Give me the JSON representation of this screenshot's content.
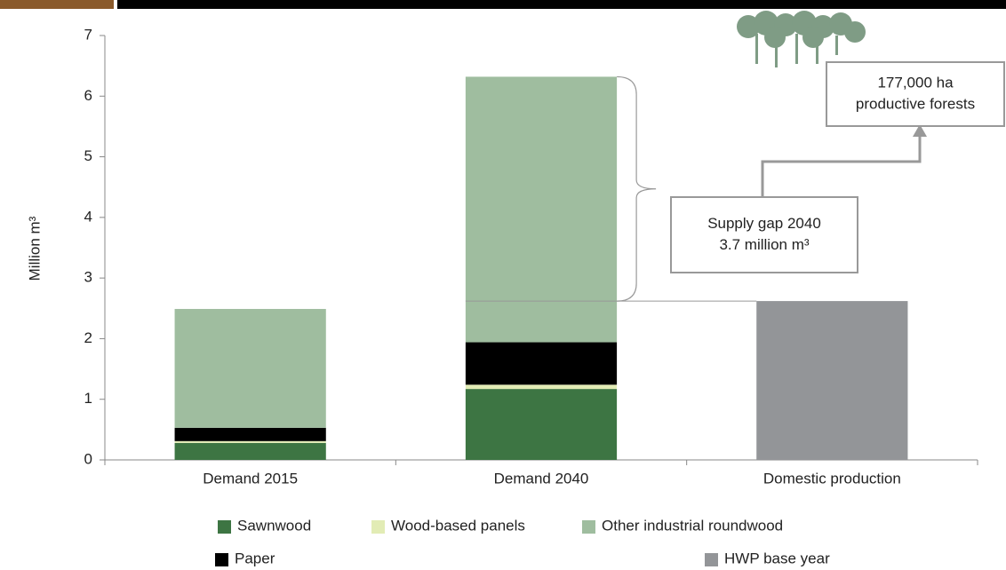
{
  "chart_data": {
    "type": "stacked_bar",
    "y_label": "Million m³",
    "categories": [
      "Demand 2015",
      "Demand 2040",
      "Domestic production"
    ],
    "series": [
      {
        "name": "Sawnwood",
        "color": "#3d7543",
        "values": [
          0.28,
          1.17,
          null
        ]
      },
      {
        "name": "Wood-based panels",
        "color": "#e2ecb5",
        "values": [
          0.03,
          0.07,
          null
        ]
      },
      {
        "name": "Paper",
        "color": "#000000",
        "values": [
          0.22,
          0.7,
          null
        ]
      },
      {
        "name": "Other industrial roundwood",
        "color": "#9fbd9f",
        "values": [
          1.96,
          4.38,
          null
        ]
      },
      {
        "name": "HWP base year",
        "color": "#939598",
        "values": [
          null,
          null,
          2.62
        ]
      }
    ],
    "ylim": [
      0,
      7
    ],
    "yticks": [
      0,
      1,
      2,
      3,
      4,
      5,
      6,
      7
    ],
    "annotations": [
      {
        "lines": [
          "Supply gap 2040",
          "3.7 million m³"
        ]
      },
      {
        "lines": [
          "177,000 ha",
          "productive forests"
        ]
      }
    ]
  }
}
